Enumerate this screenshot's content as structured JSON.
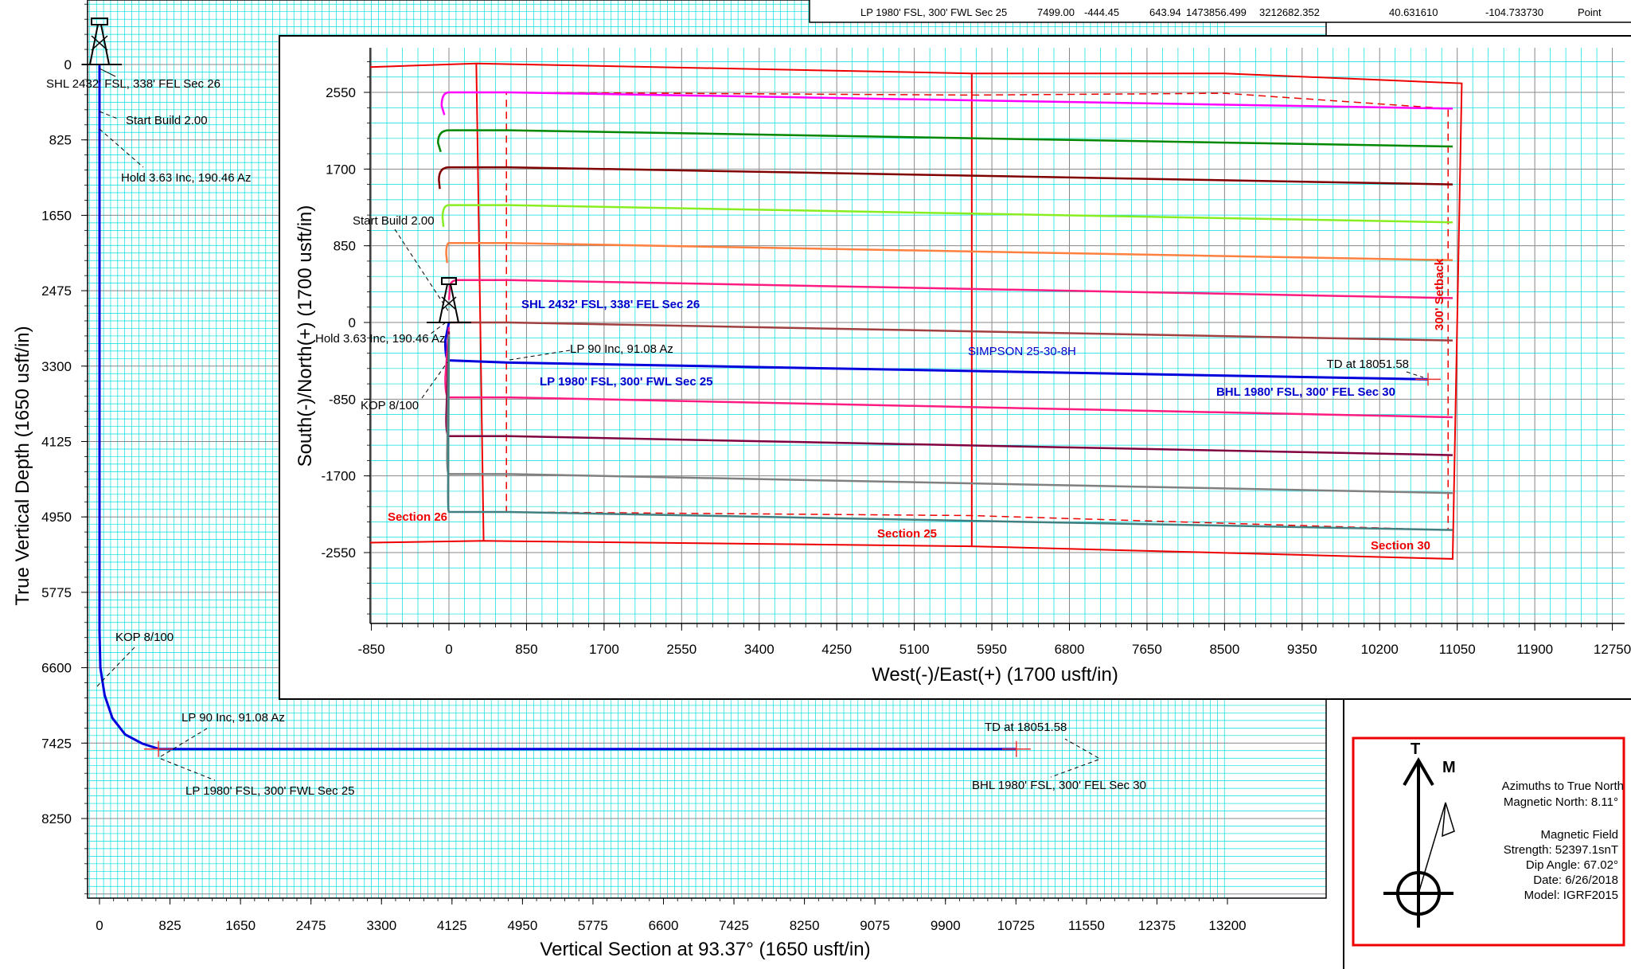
{
  "top_table": {
    "cells": [
      "LP 1980' FSL, 300' FWL Sec 25",
      "7499.00",
      "-444.45",
      "643.94",
      "1473856.499",
      "3212682.352",
      "40.631610",
      "-104.733730",
      "Point"
    ]
  },
  "north_box": {
    "t_label": "T",
    "m_label": "M",
    "lines": [
      "Azimuths to True North",
      "Magnetic North: 8.11°",
      "",
      "Magnetic Field",
      "Strength: 52397.1snT",
      "Dip Angle: 67.02°",
      "Date: 6/26/2018",
      "Model: IGRF2015"
    ]
  },
  "chart_data": [
    {
      "type": "line",
      "name": "vertical-section",
      "title": "",
      "xlabel": "Vertical Section at 93.37° (1650 usft/in)",
      "ylabel": "True Vertical Depth (1650 usft/in)",
      "xlim": [
        -200,
        13200
      ],
      "ylim": [
        9100,
        -650
      ],
      "y_inverted": true,
      "grid": true,
      "x_ticks": [
        0,
        825,
        1650,
        2475,
        3300,
        4125,
        4950,
        5775,
        6600,
        7425,
        8250,
        9075,
        9900,
        10725,
        11550,
        12375,
        13200
      ],
      "y_ticks": [
        0,
        825,
        1650,
        2475,
        3300,
        4125,
        4950,
        5775,
        6600,
        7425,
        8250
      ],
      "series": [
        {
          "color": "#0000dd",
          "x": [
            0,
            0,
            0,
            0,
            10,
            60,
            150,
            300,
            500,
            700,
            10730
          ],
          "y": [
            0,
            300,
            700,
            6200,
            6600,
            6900,
            7150,
            7330,
            7430,
            7490,
            7490
          ]
        }
      ],
      "annotations": [
        {
          "text": "SHL 2432' FSL, 338' FEL Sec 26",
          "x": 0,
          "y": 0
        },
        {
          "text": "Start Build 2.00",
          "x": 0,
          "y": 300
        },
        {
          "text": "Hold 3.63 Inc, 190.46 Az",
          "x": 0,
          "y": 700
        },
        {
          "text": "KOP 8/100",
          "x": 0,
          "y": 6600
        },
        {
          "text": "LP 90 Inc, 91.08 Az",
          "x": 690,
          "y": 7490
        },
        {
          "text": "LP 1980' FSL, 300' FWL Sec 25",
          "x": 690,
          "y": 7490
        },
        {
          "text": "TD at 18051.58",
          "x": 10730,
          "y": 7490
        },
        {
          "text": "BHL 1980' FSL, 300' FEL Sec 30",
          "x": 10730,
          "y": 7490
        }
      ]
    },
    {
      "type": "line",
      "name": "plan-view",
      "title": "",
      "xlabel": "West(-)/East(+) (1700 usft/in)",
      "ylabel": "South(-)/North(+) (1700 usft/in)",
      "xlim": [
        -850,
        12750
      ],
      "ylim": [
        -3300,
        3000
      ],
      "grid": true,
      "x_ticks": [
        -850,
        0,
        850,
        1700,
        2550,
        3400,
        4250,
        5100,
        5950,
        6800,
        7650,
        8500,
        9350,
        10200,
        11050,
        11900,
        12750
      ],
      "y_ticks": [
        2550,
        1700,
        850,
        0,
        -850,
        -1700,
        -2550
      ],
      "series": [
        {
          "color": "#ff00ff",
          "x": [
            -50,
            -80,
            0,
            650,
            11000
          ],
          "y": [
            2300,
            2400,
            2550,
            2550,
            2370
          ]
        },
        {
          "color": "#008800",
          "x": [
            -90,
            -120,
            0,
            650,
            11000
          ],
          "y": [
            1890,
            1990,
            2130,
            2130,
            1950
          ]
        },
        {
          "color": "#800000",
          "x": [
            -100,
            -110,
            0,
            650,
            11000
          ],
          "y": [
            1480,
            1580,
            1720,
            1720,
            1530
          ]
        },
        {
          "color": "#88ee22",
          "x": [
            -60,
            -70,
            0,
            650,
            11000
          ],
          "y": [
            1060,
            1160,
            1300,
            1300,
            1110
          ]
        },
        {
          "color": "#ff8040",
          "x": [
            -20,
            -30,
            0,
            650,
            11000
          ],
          "y": [
            660,
            760,
            880,
            880,
            690
          ]
        },
        {
          "color": "#ff1c80",
          "x": [
            0,
            10,
            100,
            650,
            11000
          ],
          "y": [
            250,
            380,
            470,
            470,
            270
          ]
        },
        {
          "color": "#a04040",
          "x": [
            0,
            650,
            11000
          ],
          "y": [
            0,
            0,
            -200
          ]
        },
        {
          "color": "#0000dd",
          "x": [
            0,
            -40,
            0,
            650,
            10730
          ],
          "y": [
            0,
            -200,
            -420,
            -444,
            -630
          ]
        },
        {
          "color": "#ff1c80",
          "x": [
            0,
            -40,
            0,
            650,
            11000
          ],
          "y": [
            -50,
            -620,
            -830,
            -830,
            -1050
          ]
        },
        {
          "color": "#800040",
          "x": [
            0,
            -30,
            0,
            650,
            11000
          ],
          "y": [
            -100,
            -1060,
            -1260,
            -1260,
            -1470
          ]
        },
        {
          "color": "#808080",
          "x": [
            0,
            -20,
            0,
            650,
            11000
          ],
          "y": [
            -130,
            -1470,
            -1680,
            -1680,
            -1890
          ]
        },
        {
          "color": "#408080",
          "x": [
            0,
            -10,
            0,
            650,
            11000
          ],
          "y": [
            -160,
            -1880,
            -2100,
            -2100,
            -2300
          ]
        }
      ],
      "section_lines": [
        {
          "x": [
            -870,
            300,
            5730,
            8500,
            11100,
            11000,
            5730,
            380,
            -870
          ],
          "y": [
            2830,
            2870,
            2760,
            2760,
            2650,
            -2620,
            -2480,
            -2420,
            -2440
          ]
        },
        {
          "x": [
            300,
            380
          ],
          "y": [
            2870,
            -2420
          ]
        },
        {
          "x": [
            5730,
            5730
          ],
          "y": [
            2760,
            -2480
          ]
        }
      ],
      "setback_lines": [
        {
          "x": [
            630,
            5730,
            8500,
            10950,
            10950,
            5730,
            690,
            690,
            630,
            630
          ],
          "y": [
            2550,
            2520,
            2540,
            2370,
            -2300,
            -2140,
            -2100,
            -2100,
            -2100,
            2550
          ]
        }
      ],
      "annotations": [
        {
          "text": "Start Build 2.00",
          "style": "plain"
        },
        {
          "text": "Hold 3.63 Inc, 190.46 Az",
          "style": "plain"
        },
        {
          "text": "KOP 8/100",
          "style": "plain"
        },
        {
          "text": "LP 90 Inc, 91.08 Az",
          "style": "plain"
        },
        {
          "text": "SHL 2432' FSL, 338' FEL Sec 26",
          "style": "bold-blue"
        },
        {
          "text": "LP 1980' FSL, 300' FWL Sec 25",
          "style": "bold-blue"
        },
        {
          "text": "BHL 1980' FSL, 300' FEL Sec 30",
          "style": "bold-blue"
        },
        {
          "text": "SIMPSON 25-30-8H",
          "style": "blue"
        },
        {
          "text": "TD at 18051.58",
          "style": "plain"
        },
        {
          "text": "Section 26",
          "style": "red"
        },
        {
          "text": "Section 25",
          "style": "red"
        },
        {
          "text": "Section 30",
          "style": "red"
        },
        {
          "text": "300' Setback",
          "style": "red"
        }
      ]
    }
  ]
}
